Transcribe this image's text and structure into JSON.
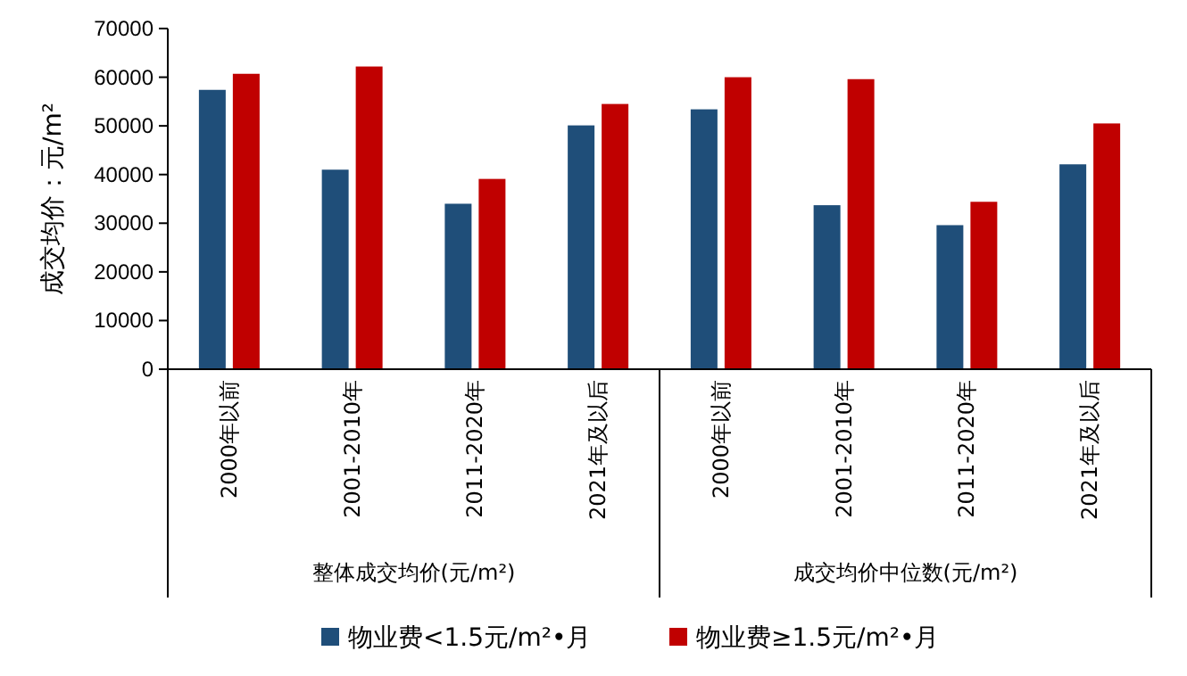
{
  "chart_data": {
    "type": "bar",
    "ylabel": "成交均价：元/m²",
    "categories": [
      "2000年以前",
      "2001-2010年",
      "2011-2020年",
      "2021年及以后",
      "2000年以前",
      "2001-2010年",
      "2011-2020年",
      "2021年及以后"
    ],
    "annotations": [
      "整体成交均价(元/m²)",
      "成交均价中位数(元/m²)"
    ],
    "series": [
      {
        "name": "物业费<1.5元/m²•月",
        "color": "#1f4e79",
        "values": [
          57400,
          41000,
          34000,
          50100,
          53400,
          33700,
          29600,
          42100
        ]
      },
      {
        "name": "物业费≥1.5元/m²•月",
        "color": "#c00000",
        "values": [
          60700,
          62200,
          39100,
          54500,
          60000,
          59600,
          34400,
          50500
        ]
      }
    ],
    "ylim": [
      0,
      70000
    ],
    "yticks": [
      0,
      10000,
      20000,
      30000,
      40000,
      50000,
      60000,
      70000
    ],
    "grid": false,
    "legend": "bottom"
  }
}
